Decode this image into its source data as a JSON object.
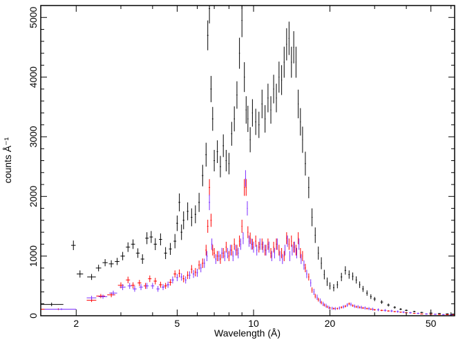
{
  "chart_data": {
    "type": "scatter",
    "title": "",
    "xlabel": "Wavelength (Å)",
    "ylabel": "counts Å⁻¹",
    "x_scale": "log",
    "xlim": [
      1.45,
      62
    ],
    "ylim": [
      0,
      5200
    ],
    "grid": false,
    "legend": "none",
    "x_ticks": [
      2,
      5,
      10,
      20,
      50
    ],
    "x_tick_labels": [
      "2",
      "5",
      "10",
      "20",
      "50"
    ],
    "y_ticks": [
      0,
      1000,
      2000,
      3000,
      4000,
      5000
    ],
    "y_tick_labels": [
      "0",
      "1000",
      "2000",
      "3000",
      "4000",
      "5000"
    ],
    "series": [
      {
        "color": "#000000",
        "x": [
          1.6,
          1.95,
          2.07,
          2.3,
          2.45,
          2.6,
          2.75,
          2.9,
          3.05,
          3.2,
          3.35,
          3.5,
          3.65,
          3.8,
          3.95,
          4.1,
          4.3,
          4.5,
          4.7,
          4.9,
          5.0,
          5.1,
          5.2,
          5.3,
          5.5,
          5.7,
          5.9,
          6.1,
          6.3,
          6.5,
          6.6,
          6.7,
          6.8,
          6.9,
          7.0,
          7.2,
          7.4,
          7.6,
          7.8,
          8.0,
          8.2,
          8.4,
          8.6,
          8.8,
          9.0,
          9.2,
          9.35,
          9.5,
          9.7,
          9.9,
          10.2,
          10.5,
          10.8,
          11.1,
          11.4,
          11.7,
          12.0,
          12.3,
          12.6,
          12.9,
          13.2,
          13.5,
          13.8,
          14.1,
          14.4,
          14.7,
          15.0,
          15.3,
          15.6,
          16.0,
          16.5,
          17.0,
          17.5,
          18.0,
          18.5,
          19.0,
          19.5,
          20.0,
          20.7,
          21.4,
          22.2,
          23.0,
          23.8,
          24.6,
          25.4,
          26.2,
          27.0,
          28.0,
          29.0,
          30.0,
          32.0,
          34.0,
          36.0,
          38.0,
          40.0,
          43.0,
          46.0,
          50.0,
          54.0,
          58.0,
          61.0
        ],
        "y": [
          190,
          1180,
          700,
          650,
          800,
          890,
          870,
          910,
          1000,
          1150,
          1200,
          1050,
          950,
          1300,
          1320,
          1200,
          1280,
          1050,
          1120,
          1250,
          1550,
          1900,
          1400,
          1600,
          1750,
          1650,
          1700,
          1900,
          2350,
          2700,
          4700,
          5150,
          3800,
          3300,
          2600,
          2750,
          2500,
          2850,
          2600,
          2550,
          3050,
          3300,
          3700,
          4400,
          4950,
          4000,
          3450,
          3300,
          2950,
          3400,
          3250,
          3200,
          3550,
          3300,
          3650,
          3450,
          3800,
          3650,
          4000,
          3950,
          4250,
          4550,
          4650,
          4250,
          4500,
          4250,
          3550,
          3250,
          2950,
          2550,
          2150,
          1650,
          1350,
          1050,
          880,
          690,
          570,
          500,
          470,
          520,
          650,
          760,
          690,
          660,
          600,
          520,
          450,
          380,
          320,
          280,
          230,
          180,
          140,
          110,
          90,
          70,
          55,
          45,
          38,
          32,
          28
        ],
        "xerr": [
          0.18,
          0.04,
          0.06,
          0.09,
          0.06,
          0.06,
          0.06,
          0.06,
          0.06,
          0.06,
          0.06,
          0.06,
          0.06,
          0.06,
          0.06,
          0.06,
          0.06,
          0.06,
          0.06,
          0.06,
          0.04,
          0.04,
          0.04,
          0.04,
          0.04,
          0.04,
          0.04,
          0.04,
          0.04,
          0.04,
          0.04,
          0.04,
          0.04,
          0.04,
          0.04,
          0.04,
          0.04,
          0.04,
          0.04,
          0.04,
          0.04,
          0.04,
          0.04,
          0.04,
          0.04,
          0.04,
          0.04,
          0.04,
          0.04,
          0.04,
          0.05,
          0.05,
          0.05,
          0.05,
          0.05,
          0.05,
          0.05,
          0.05,
          0.05,
          0.05,
          0.05,
          0.05,
          0.05,
          0.05,
          0.05,
          0.05,
          0.05,
          0.05,
          0.05,
          0.08,
          0.08,
          0.08,
          0.08,
          0.08,
          0.08,
          0.08,
          0.08,
          0.1,
          0.12,
          0.12,
          0.15,
          0.15,
          0.15,
          0.15,
          0.15,
          0.15,
          0.2,
          0.2,
          0.2,
          0.3,
          0.4,
          0.4,
          0.4,
          0.4,
          0.5,
          0.5,
          0.6,
          0.7,
          0.7,
          0.8,
          0.8
        ],
        "yerr": [
          30,
          80,
          60,
          50,
          55,
          60,
          60,
          60,
          70,
          80,
          80,
          80,
          80,
          100,
          100,
          100,
          100,
          100,
          100,
          120,
          130,
          150,
          130,
          150,
          150,
          150,
          150,
          160,
          180,
          200,
          250,
          250,
          220,
          200,
          180,
          190,
          180,
          190,
          180,
          180,
          200,
          210,
          230,
          260,
          280,
          250,
          230,
          220,
          210,
          230,
          220,
          220,
          240,
          230,
          240,
          230,
          240,
          240,
          260,
          250,
          260,
          270,
          280,
          260,
          270,
          260,
          240,
          230,
          220,
          200,
          180,
          150,
          130,
          110,
          100,
          80,
          70,
          60,
          60,
          60,
          70,
          70,
          70,
          65,
          60,
          55,
          50,
          45,
          40,
          35,
          30,
          25,
          20,
          18,
          15,
          12,
          10,
          9,
          8,
          7,
          6
        ]
      },
      {
        "color": "#ff0000",
        "x": [
          1.7,
          2.3,
          2.5,
          2.75,
          3.0,
          3.2,
          3.35,
          3.55,
          3.75,
          3.9,
          4.1,
          4.3,
          4.5,
          4.7,
          4.9,
          5.1,
          5.3,
          5.5,
          5.7,
          5.9,
          6.1,
          6.3,
          6.5,
          6.6,
          6.7,
          6.8,
          6.9,
          7.0,
          7.2,
          7.4,
          7.6,
          7.8,
          8.0,
          8.2,
          8.4,
          8.6,
          8.8,
          9.0,
          9.2,
          9.35,
          9.5,
          9.7,
          9.9,
          10.2,
          10.5,
          10.8,
          11.1,
          11.4,
          11.7,
          12.0,
          12.3,
          12.6,
          12.9,
          13.2,
          13.5,
          13.8,
          14.1,
          14.4,
          14.7,
          15.0,
          15.3,
          15.6,
          16.0,
          16.5,
          17.0,
          17.5,
          18.0,
          18.5,
          19.0,
          19.5,
          20.0,
          20.7,
          21.4,
          22.2,
          23.0,
          23.8,
          24.6,
          25.4,
          26.2,
          27.0,
          28.0,
          29.0,
          30.0,
          32.0,
          34.0,
          36.0,
          38.0,
          40.0,
          43.0,
          46.0,
          50.0,
          54.0,
          58.0,
          61.0
        ],
        "y": [
          110,
          260,
          330,
          350,
          510,
          600,
          510,
          550,
          500,
          620,
          580,
          520,
          500,
          560,
          700,
          710,
          620,
          680,
          780,
          730,
          850,
          880,
          1100,
          1500,
          2150,
          1600,
          1100,
          1050,
          1000,
          950,
          1050,
          1150,
          1000,
          1100,
          1200,
          1100,
          1250,
          1500,
          2150,
          2150,
          1400,
          1300,
          1200,
          1250,
          1150,
          1200,
          1100,
          1200,
          1050,
          1150,
          1200,
          1100,
          1050,
          1000,
          1300,
          1200,
          1250,
          1150,
          1100,
          1300,
          1050,
          1000,
          800,
          650,
          430,
          330,
          270,
          220,
          180,
          150,
          130,
          120,
          120,
          140,
          160,
          200,
          170,
          150,
          140,
          130,
          120,
          110,
          100,
          90,
          80,
          70,
          60,
          50,
          40,
          30,
          25,
          20,
          18,
          15
        ],
        "xerr": [
          0.25,
          0.1,
          0.1,
          0.1,
          0.08,
          0.06,
          0.06,
          0.06,
          0.06,
          0.06,
          0.06,
          0.06,
          0.06,
          0.06,
          0.06,
          0.04,
          0.04,
          0.04,
          0.04,
          0.04,
          0.04,
          0.04,
          0.04,
          0.04,
          0.04,
          0.04,
          0.04,
          0.04,
          0.04,
          0.04,
          0.04,
          0.04,
          0.04,
          0.04,
          0.04,
          0.04,
          0.04,
          0.04,
          0.04,
          0.04,
          0.04,
          0.04,
          0.04,
          0.05,
          0.05,
          0.05,
          0.05,
          0.05,
          0.05,
          0.05,
          0.05,
          0.05,
          0.05,
          0.05,
          0.05,
          0.05,
          0.05,
          0.05,
          0.05,
          0.05,
          0.05,
          0.05,
          0.08,
          0.08,
          0.08,
          0.08,
          0.08,
          0.08,
          0.08,
          0.08,
          0.1,
          0.12,
          0.12,
          0.15,
          0.15,
          0.15,
          0.15,
          0.15,
          0.15,
          0.2,
          0.2,
          0.2,
          0.3,
          0.4,
          0.4,
          0.4,
          0.4,
          0.5,
          0.5,
          0.6,
          0.7,
          0.7,
          0.8,
          0.8
        ],
        "yerr": [
          15,
          30,
          35,
          40,
          50,
          55,
          50,
          50,
          50,
          55,
          55,
          50,
          50,
          55,
          60,
          65,
          60,
          65,
          70,
          70,
          75,
          80,
          90,
          110,
          140,
          110,
          90,
          85,
          85,
          80,
          85,
          90,
          85,
          90,
          95,
          90,
          95,
          110,
          140,
          140,
          100,
          95,
          90,
          95,
          90,
          95,
          90,
          95,
          85,
          90,
          95,
          90,
          85,
          85,
          100,
          95,
          95,
          90,
          90,
          100,
          85,
          85,
          70,
          60,
          45,
          38,
          32,
          28,
          24,
          20,
          18,
          16,
          16,
          18,
          20,
          22,
          20,
          18,
          17,
          16,
          15,
          14,
          13,
          12,
          11,
          10,
          9,
          8,
          7,
          6,
          5,
          4,
          4,
          3
        ]
      },
      {
        "color": "#7b2cff",
        "x": [
          1.75,
          2.3,
          2.55,
          2.8,
          3.05,
          3.25,
          3.4,
          3.6,
          3.8,
          4.0,
          4.2,
          4.4,
          4.6,
          4.8,
          5.0,
          5.2,
          5.4,
          5.6,
          5.8,
          6.0,
          6.2,
          6.4,
          6.55,
          6.7,
          6.85,
          7.1,
          7.3,
          7.5,
          7.7,
          7.9,
          8.1,
          8.3,
          8.5,
          8.7,
          8.9,
          9.1,
          9.3,
          9.45,
          9.6,
          9.8,
          10.0,
          10.3,
          10.6,
          10.9,
          11.2,
          11.5,
          11.8,
          12.1,
          12.4,
          12.7,
          13.0,
          13.3,
          13.6,
          13.9,
          14.2,
          14.5,
          14.8,
          15.1,
          15.4,
          15.8,
          16.2,
          16.8,
          17.3,
          17.8,
          18.3,
          18.8,
          19.3,
          19.8,
          20.4,
          21.0,
          21.8,
          22.6,
          23.4,
          24.2,
          25.0,
          25.8,
          26.6,
          27.5,
          28.5,
          29.5,
          31.0,
          33.0,
          35.0,
          37.0,
          39.0,
          41.5,
          44.5,
          48.0,
          52.0,
          56.0,
          60.0
        ],
        "y": [
          110,
          300,
          320,
          380,
          480,
          500,
          450,
          480,
          500,
          500,
          450,
          480,
          520,
          600,
          640,
          650,
          600,
          680,
          700,
          720,
          800,
          880,
          1000,
          1900,
          1200,
          950,
          1000,
          1050,
          1000,
          1050,
          1100,
          1000,
          1100,
          1050,
          1200,
          1300,
          2300,
          1800,
          1250,
          1200,
          1150,
          1100,
          1200,
          1150,
          1100,
          1150,
          1000,
          1050,
          1200,
          1000,
          950,
          1100,
          1250,
          1000,
          1100,
          1150,
          1050,
          1200,
          950,
          850,
          700,
          550,
          400,
          310,
          250,
          200,
          170,
          140,
          125,
          120,
          130,
          150,
          180,
          190,
          160,
          150,
          140,
          130,
          120,
          110,
          100,
          90,
          80,
          70,
          60,
          50,
          40,
          30,
          25,
          20,
          16
        ],
        "xerr": [
          0.25,
          0.1,
          0.1,
          0.1,
          0.08,
          0.06,
          0.06,
          0.06,
          0.06,
          0.06,
          0.06,
          0.06,
          0.06,
          0.06,
          0.04,
          0.04,
          0.04,
          0.04,
          0.04,
          0.04,
          0.04,
          0.04,
          0.04,
          0.04,
          0.04,
          0.04,
          0.04,
          0.04,
          0.04,
          0.04,
          0.04,
          0.04,
          0.04,
          0.04,
          0.04,
          0.04,
          0.04,
          0.04,
          0.04,
          0.04,
          0.05,
          0.05,
          0.05,
          0.05,
          0.05,
          0.05,
          0.05,
          0.05,
          0.05,
          0.05,
          0.05,
          0.05,
          0.05,
          0.05,
          0.05,
          0.05,
          0.05,
          0.05,
          0.05,
          0.08,
          0.08,
          0.08,
          0.08,
          0.08,
          0.08,
          0.08,
          0.08,
          0.08,
          0.1,
          0.12,
          0.12,
          0.15,
          0.15,
          0.15,
          0.15,
          0.15,
          0.15,
          0.2,
          0.2,
          0.2,
          0.3,
          0.4,
          0.4,
          0.4,
          0.4,
          0.5,
          0.5,
          0.6,
          0.7,
          0.7,
          0.8
        ],
        "yerr": [
          15,
          35,
          35,
          40,
          50,
          50,
          48,
          50,
          50,
          50,
          48,
          50,
          52,
          58,
          60,
          62,
          60,
          65,
          66,
          68,
          72,
          78,
          85,
          130,
          95,
          82,
          85,
          87,
          85,
          87,
          90,
          85,
          90,
          88,
          95,
          100,
          140,
          120,
          95,
          93,
          92,
          90,
          95,
          93,
          90,
          93,
          85,
          88,
          95,
          85,
          83,
          90,
          96,
          85,
          90,
          92,
          88,
          94,
          83,
          78,
          70,
          62,
          52,
          45,
          40,
          35,
          32,
          28,
          26,
          25,
          26,
          28,
          30,
          31,
          29,
          28,
          27,
          26,
          25,
          24,
          23,
          21,
          20,
          18,
          16,
          15,
          13,
          11,
          10,
          9,
          8
        ]
      }
    ]
  }
}
